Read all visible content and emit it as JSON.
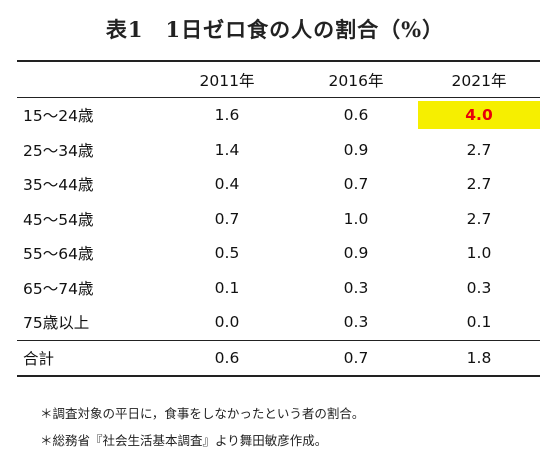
{
  "title": "表1　1日ゼロ食の人の割合（%）",
  "colors": {
    "highlight_bg": "#f6ef00",
    "highlight_text": "#e8000a"
  },
  "table": {
    "corner": "",
    "columns": [
      "2011年",
      "2016年",
      "2021年"
    ],
    "rows": [
      {
        "label": "15～24歳",
        "values": [
          "1.6",
          "0.6",
          "4.0"
        ]
      },
      {
        "label": "25～34歳",
        "values": [
          "1.4",
          "0.9",
          "2.7"
        ]
      },
      {
        "label": "35～44歳",
        "values": [
          "0.4",
          "0.7",
          "2.7"
        ]
      },
      {
        "label": "45～54歳",
        "values": [
          "0.7",
          "1.0",
          "2.7"
        ]
      },
      {
        "label": "55～64歳",
        "values": [
          "0.5",
          "0.9",
          "1.0"
        ]
      },
      {
        "label": "65～74歳",
        "values": [
          "0.1",
          "0.3",
          "0.3"
        ]
      },
      {
        "label": "75歳以上",
        "values": [
          "0.0",
          "0.3",
          "0.1"
        ]
      }
    ],
    "total": {
      "label": "合計",
      "values": [
        "0.6",
        "0.7",
        "1.8"
      ]
    }
  },
  "notes": [
    "＊調査対象の平日に，食事をしなかったという者の割合。",
    "＊総務省『社会生活基本調査』より舞田敏彦作成。"
  ]
}
